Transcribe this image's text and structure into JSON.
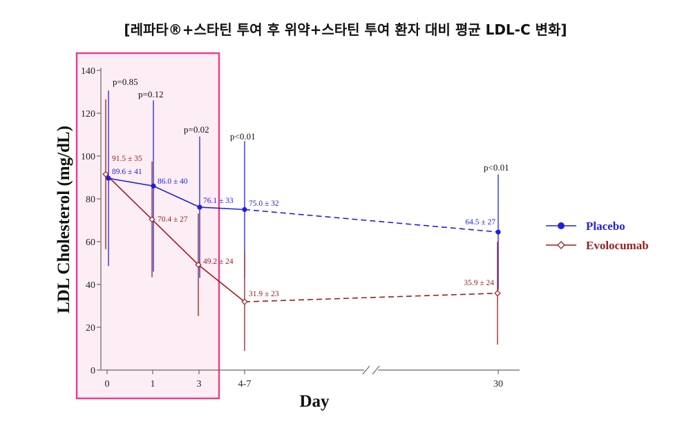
{
  "chart_data": {
    "type": "line",
    "title": "[레파타®+스타틴 투여 후 위약+스타틴 투여 환자 대비 평균 LDL-C 변화]",
    "xlabel": "Day",
    "ylabel": "LDL Cholesterol (mg/dL)",
    "x": [
      "0",
      "1",
      "3",
      "4-7",
      "30"
    ],
    "ylim": [
      0,
      140
    ],
    "yticks": [
      0,
      20,
      40,
      60,
      80,
      100,
      120,
      140
    ],
    "axis_break": "between 4-7 and 30",
    "highlight": {
      "from": "0",
      "to": "3",
      "color": "#e8408c"
    },
    "legend_position": "right",
    "series": [
      {
        "name": "Placebo",
        "color": "#1f1fe0",
        "marker": "filled-circle",
        "values": [
          89.6,
          86.0,
          76.1,
          75.0,
          64.5
        ],
        "sd": [
          41,
          40,
          33,
          32,
          27
        ],
        "labels": [
          "89.6 ± 41",
          "86.0 ± 40",
          "76.1 ± 33",
          "75.0 ± 32",
          "64.5 ± 27"
        ]
      },
      {
        "name": "Evolocumab",
        "color": "#9b1c1c",
        "marker": "open-diamond",
        "values": [
          91.5,
          70.4,
          49.2,
          31.9,
          35.9
        ],
        "sd": [
          35,
          27,
          24,
          23,
          24
        ],
        "labels": [
          "91.5 ± 35",
          "70.4 ± 27",
          "49.2 ± 24",
          "31.9 ± 23",
          "35.9 ± 24"
        ]
      }
    ],
    "p_values": [
      "p=0.85",
      "p=0.12",
      "p=0.02",
      "p<0.01",
      "p<0.01"
    ]
  }
}
